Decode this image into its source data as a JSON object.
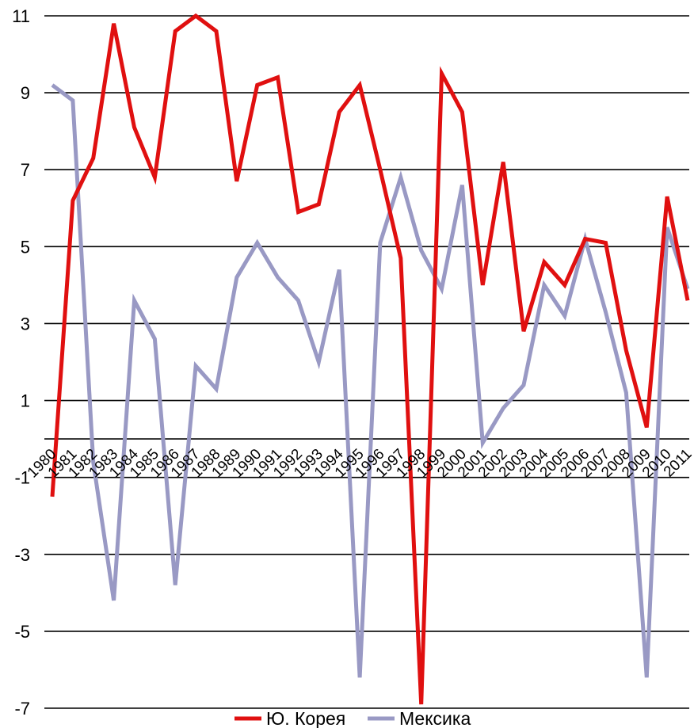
{
  "chart_data": {
    "type": "line",
    "title": "",
    "xlabel": "",
    "ylabel": "",
    "ylim": [
      -7,
      11
    ],
    "yticks": [
      -7,
      -5,
      -3,
      -1,
      1,
      3,
      5,
      7,
      9,
      11
    ],
    "grid": true,
    "legend_position": "bottom",
    "categories": [
      "1980",
      "1981",
      "1982",
      "1983",
      "1984",
      "1985",
      "1986",
      "1987",
      "1988",
      "1989",
      "1990",
      "1991",
      "1992",
      "1993",
      "1994",
      "1995",
      "1996",
      "1997",
      "1998",
      "1999",
      "2000",
      "2001",
      "2002",
      "2003",
      "2004",
      "2005",
      "2006",
      "2007",
      "2008",
      "2009",
      "2010",
      "2011"
    ],
    "series": [
      {
        "name": "Ю. Корея",
        "color": "#e01010",
        "values": [
          -1.5,
          6.2,
          7.3,
          10.8,
          8.1,
          6.8,
          10.6,
          11.0,
          10.6,
          6.7,
          9.2,
          9.4,
          5.9,
          6.1,
          8.5,
          9.2,
          7.0,
          4.7,
          -6.9,
          9.5,
          8.5,
          4.0,
          7.2,
          2.8,
          4.6,
          4.0,
          5.2,
          5.1,
          2.3,
          0.3,
          6.3,
          3.6
        ]
      },
      {
        "name": "Мексика",
        "color": "#9999c4",
        "values": [
          9.2,
          8.8,
          -0.6,
          -4.2,
          3.6,
          2.6,
          -3.8,
          1.9,
          1.3,
          4.2,
          5.1,
          4.2,
          3.6,
          2.0,
          4.4,
          -6.2,
          5.1,
          6.8,
          4.9,
          3.9,
          6.6,
          -0.1,
          0.8,
          1.4,
          4.0,
          3.2,
          5.2,
          3.3,
          1.2,
          -6.2,
          5.5,
          3.9
        ]
      }
    ]
  }
}
